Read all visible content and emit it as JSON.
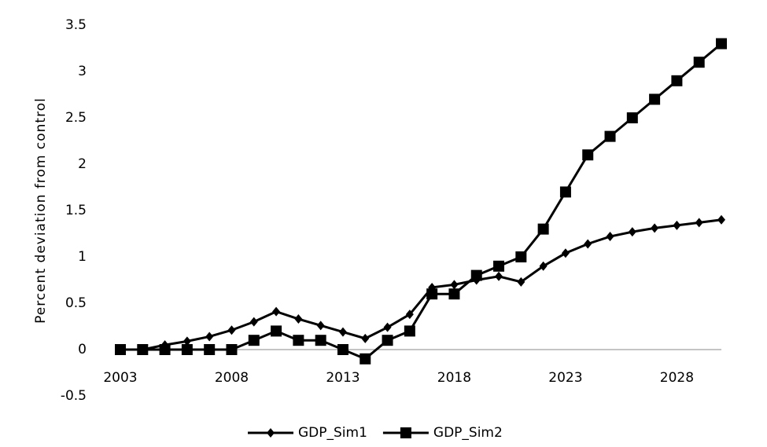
{
  "chart_data": {
    "type": "line",
    "y_label": "Percent deviation from control",
    "x": [
      2003,
      2004,
      2005,
      2006,
      2007,
      2008,
      2009,
      2010,
      2011,
      2012,
      2013,
      2014,
      2015,
      2016,
      2017,
      2018,
      2019,
      2020,
      2021,
      2022,
      2023,
      2024,
      2025,
      2026,
      2027,
      2028,
      2029,
      2030
    ],
    "series": [
      {
        "name": "GDP_Sim1",
        "color": "#000000",
        "marker": "diamond",
        "values": [
          0,
          0,
          0.05,
          0.09,
          0.14,
          0.21,
          0.3,
          0.41,
          0.33,
          0.26,
          0.19,
          0.12,
          0.24,
          0.38,
          0.67,
          0.7,
          0.75,
          0.79,
          0.73,
          0.9,
          1.04,
          1.14,
          1.22,
          1.27,
          1.31,
          1.34,
          1.37,
          1.4
        ]
      },
      {
        "name": "GDP_Sim2",
        "color": "#000000",
        "marker": "square",
        "values": [
          0,
          0,
          0,
          0,
          0,
          0,
          0.1,
          0.2,
          0.1,
          0.1,
          0,
          -0.1,
          0.1,
          0.2,
          0.6,
          0.6,
          0.8,
          0.9,
          1.0,
          1.3,
          1.7,
          2.1,
          2.3,
          2.5,
          2.7,
          2.9,
          3.1,
          3.3
        ]
      }
    ],
    "xlim": [
      2003,
      2030
    ],
    "xticks": [
      2003,
      2008,
      2013,
      2018,
      2023,
      2028
    ],
    "ylim": [
      -0.5,
      3.5
    ],
    "yticks": [
      -0.5,
      0,
      0.5,
      1,
      1.5,
      2,
      2.5,
      3,
      3.5
    ],
    "grid": false,
    "legend": "bottom"
  }
}
